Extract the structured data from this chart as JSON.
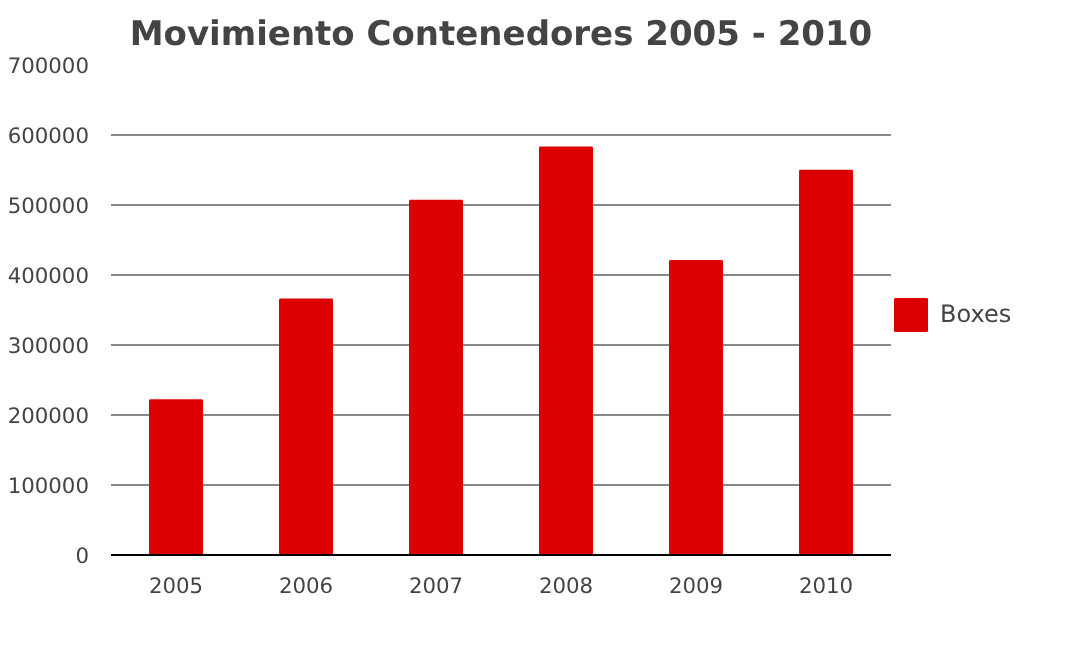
{
  "chart_data": {
    "type": "bar",
    "title": "Movimiento Contenedores 2005 - 2010",
    "categories": [
      "2005",
      "2006",
      "2007",
      "2008",
      "2009",
      "2010"
    ],
    "series": [
      {
        "name": "Boxes",
        "color": "#dd0000",
        "values": [
          221000,
          365000,
          506000,
          582000,
          420000,
          549000
        ]
      }
    ],
    "ylim": [
      0,
      700000
    ],
    "yticks": [
      0,
      100000,
      200000,
      300000,
      400000,
      500000,
      600000,
      700000
    ],
    "grid": "y",
    "legend": "right"
  }
}
